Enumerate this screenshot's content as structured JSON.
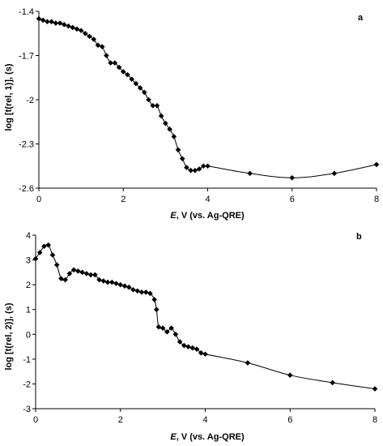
{
  "chart_data": [
    {
      "type": "line",
      "panel_label": "a",
      "ylabel": "log [t(rel, 1)], (s)",
      "xlabel_italic": "E",
      "xlabel_rest": ", V (vs. Ag-QRE)",
      "xlim": [
        0,
        8
      ],
      "ylim": [
        -2.6,
        -1.4
      ],
      "x_ticks": [
        "0",
        "2",
        "4",
        "6",
        "8"
      ],
      "y_ticks": [
        "-1.4",
        "-1.7",
        "-2",
        "-2.3",
        "-2.6"
      ],
      "x_tick_values": [
        0,
        2,
        4,
        6,
        8
      ],
      "y_tick_values": [
        -1.4,
        -1.7,
        -2.0,
        -2.3,
        -2.6
      ],
      "grid": false,
      "series": [
        {
          "x": [
            0.0,
            0.1,
            0.2,
            0.3,
            0.4,
            0.5,
            0.6,
            0.7,
            0.8,
            0.9,
            1.0,
            1.1,
            1.2,
            1.3,
            1.4,
            1.5,
            1.6,
            1.7,
            1.8,
            1.9,
            2.0,
            2.1,
            2.2,
            2.3,
            2.4,
            2.5,
            2.6,
            2.7,
            2.8,
            2.9,
            3.0,
            3.1,
            3.2,
            3.3,
            3.4,
            3.5,
            3.6,
            3.7,
            3.8,
            3.9,
            4.0,
            5.0,
            6.0,
            7.0,
            8.0
          ],
          "y": [
            -1.45,
            -1.46,
            -1.47,
            -1.47,
            -1.48,
            -1.48,
            -1.49,
            -1.5,
            -1.51,
            -1.52,
            -1.53,
            -1.55,
            -1.57,
            -1.59,
            -1.63,
            -1.64,
            -1.7,
            -1.75,
            -1.75,
            -1.78,
            -1.81,
            -1.83,
            -1.86,
            -1.89,
            -1.92,
            -1.95,
            -2.0,
            -2.04,
            -2.04,
            -2.11,
            -2.16,
            -2.2,
            -2.25,
            -2.34,
            -2.4,
            -2.46,
            -2.48,
            -2.48,
            -2.47,
            -2.45,
            -2.45,
            -2.5,
            -2.53,
            -2.5,
            -2.44
          ]
        }
      ]
    },
    {
      "type": "line",
      "panel_label": "b",
      "ylabel": "log [t(rel, 2)], (s)",
      "xlabel_italic": "E",
      "xlabel_rest": ", V (vs. Ag-QRE)",
      "xlim": [
        0,
        8
      ],
      "ylim": [
        -3,
        4
      ],
      "x_ticks": [
        "0",
        "2",
        "4",
        "6",
        "8"
      ],
      "y_ticks": [
        "4",
        "3",
        "2",
        "1",
        "0",
        "-1",
        "-2",
        "-3"
      ],
      "x_tick_values": [
        0,
        2,
        4,
        6,
        8
      ],
      "y_tick_values": [
        4,
        3,
        2,
        1,
        0,
        -1,
        -2,
        -3
      ],
      "grid": false,
      "series": [
        {
          "x": [
            0.0,
            0.1,
            0.2,
            0.3,
            0.4,
            0.5,
            0.6,
            0.7,
            0.8,
            0.9,
            1.0,
            1.1,
            1.2,
            1.3,
            1.4,
            1.5,
            1.6,
            1.7,
            1.8,
            1.9,
            2.0,
            2.1,
            2.2,
            2.3,
            2.4,
            2.5,
            2.6,
            2.7,
            2.8,
            2.85,
            2.9,
            3.0,
            3.1,
            3.2,
            3.3,
            3.4,
            3.5,
            3.6,
            3.7,
            3.8,
            3.9,
            4.0,
            5.0,
            6.0,
            7.0,
            8.0
          ],
          "y": [
            3.05,
            3.3,
            3.55,
            3.6,
            3.2,
            2.8,
            2.25,
            2.2,
            2.45,
            2.6,
            2.55,
            2.5,
            2.45,
            2.4,
            2.4,
            2.2,
            2.15,
            2.1,
            2.1,
            2.05,
            2.0,
            1.95,
            1.9,
            1.8,
            1.75,
            1.7,
            1.7,
            1.65,
            1.4,
            1.0,
            0.3,
            0.25,
            0.1,
            0.25,
            0.0,
            -0.3,
            -0.45,
            -0.5,
            -0.55,
            -0.6,
            -0.75,
            -0.8,
            -1.15,
            -1.65,
            -1.95,
            -2.2
          ]
        }
      ]
    }
  ]
}
